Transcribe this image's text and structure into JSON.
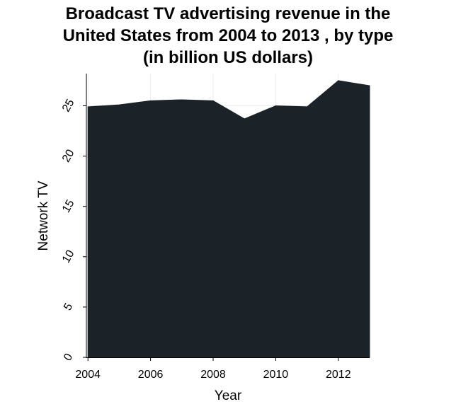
{
  "chart_data": {
    "type": "area",
    "title_lines": [
      "Broadcast TV advertising revenue in the",
      "United States from 2004 to 2013 , by type",
      "(in billion US dollars)"
    ],
    "xlabel": "Year",
    "ylabel": "Network TV",
    "x": [
      2004,
      2005,
      2006,
      2007,
      2008,
      2009,
      2010,
      2011,
      2012,
      2013
    ],
    "series": [
      {
        "values": [
          24.9,
          25.1,
          25.5,
          25.6,
          25.5,
          23.7,
          25.0,
          24.9,
          27.5,
          27.0
        ]
      }
    ],
    "x_ticks": [
      2004,
      2006,
      2008,
      2010,
      2012
    ],
    "y_ticks": [
      0,
      5,
      10,
      15,
      20,
      25
    ],
    "xlim": [
      2003.95,
      2013
    ],
    "ylim": [
      0,
      28.2
    ],
    "grid": true,
    "fill_color": "#1b2328",
    "grid_color": "#ebebeb",
    "axis_color": "#000000"
  }
}
